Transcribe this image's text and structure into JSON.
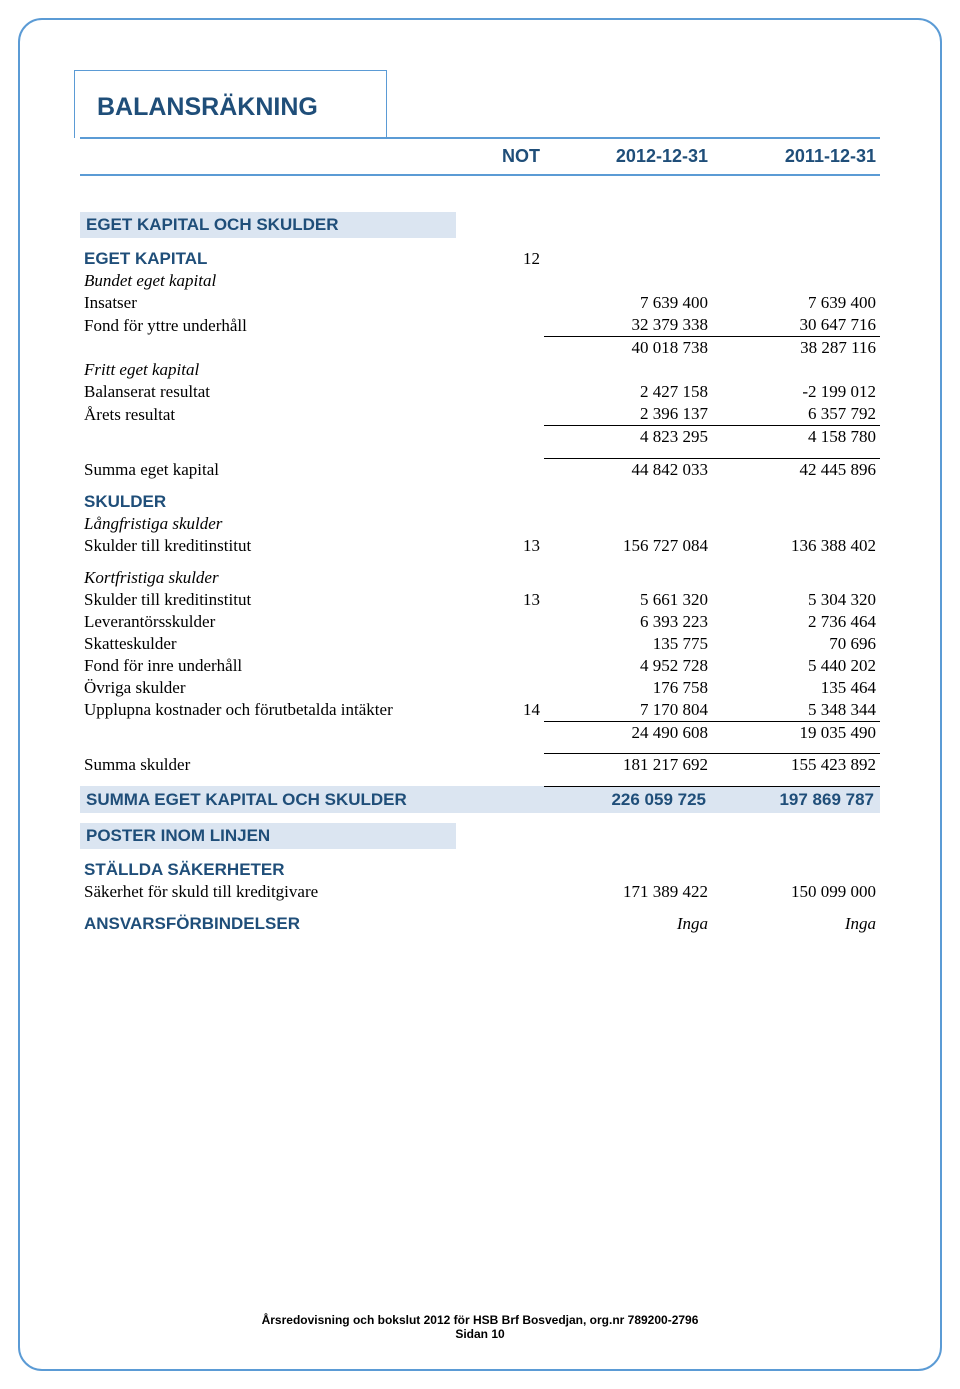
{
  "title": "BALANSRÄKNING",
  "columns": {
    "not": "NOT",
    "y1": "2012-12-31",
    "y2": "2011-12-31"
  },
  "s1": {
    "heading": "EGET KAPITAL OCH SKULDER",
    "sub1": {
      "label": "EGET KAPITAL",
      "not": "12"
    },
    "grp1": {
      "title": "Bundet eget kapital",
      "r1": {
        "label": "Insatser",
        "y1": "7 639 400",
        "y2": "7 639 400"
      },
      "r2": {
        "label": "Fond för yttre underhåll",
        "y1": "32 379 338",
        "y2": "30 647 716"
      },
      "sum": {
        "y1": "40 018 738",
        "y2": "38 287 116"
      }
    },
    "grp2": {
      "title": "Fritt eget kapital",
      "r1": {
        "label": "Balanserat resultat",
        "y1": "2 427 158",
        "y2": "-2 199 012"
      },
      "r2": {
        "label": "Årets resultat",
        "y1": "2 396 137",
        "y2": "6 357 792"
      },
      "sum": {
        "y1": "4 823 295",
        "y2": "4 158 780"
      }
    },
    "total": {
      "label": "Summa eget kapital",
      "y1": "44 842 033",
      "y2": "42 445 896"
    }
  },
  "s2": {
    "heading": "SKULDER",
    "grp1": {
      "title": "Långfristiga skulder",
      "r1": {
        "label": "Skulder till kreditinstitut",
        "not": "13",
        "y1": "156 727 084",
        "y2": "136 388 402"
      }
    },
    "grp2": {
      "title": "Kortfristiga skulder",
      "r1": {
        "label": "Skulder till kreditinstitut",
        "not": "13",
        "y1": "5 661 320",
        "y2": "5 304 320"
      },
      "r2": {
        "label": "Leverantörsskulder",
        "y1": "6 393 223",
        "y2": "2 736 464"
      },
      "r3": {
        "label": "Skatteskulder",
        "y1": "135 775",
        "y2": "70 696"
      },
      "r4": {
        "label": "Fond för inre underhåll",
        "y1": "4 952 728",
        "y2": "5 440 202"
      },
      "r5": {
        "label": "Övriga skulder",
        "y1": "176 758",
        "y2": "135 464"
      },
      "r6": {
        "label": "Upplupna kostnader och förutbetalda intäkter",
        "not": "14",
        "y1": "7 170 804",
        "y2": "5 348 344"
      },
      "sum": {
        "y1": "24 490 608",
        "y2": "19 035 490"
      }
    },
    "total": {
      "label": "Summa skulder",
      "y1": "181 217 692",
      "y2": "155 423 892"
    }
  },
  "grand": {
    "label": "SUMMA EGET KAPITAL OCH SKULDER",
    "y1": "226 059 725",
    "y2": "197 869 787"
  },
  "s3": {
    "heading": "POSTER INOM LINJEN",
    "sub1": {
      "label": "STÄLLDA SÄKERHETER"
    },
    "r1": {
      "label": "Säkerhet för skuld till kreditgivare",
      "y1": "171 389 422",
      "y2": "150 099 000"
    },
    "sub2": {
      "label": "ANSVARSFÖRBINDELSER",
      "y1": "Inga",
      "y2": "Inga"
    }
  },
  "footer": {
    "line1": "Årsredovisning och bokslut 2012 för HSB Brf Bosvedjan, org.nr 789200-2796",
    "line2": "Sidan 10"
  }
}
